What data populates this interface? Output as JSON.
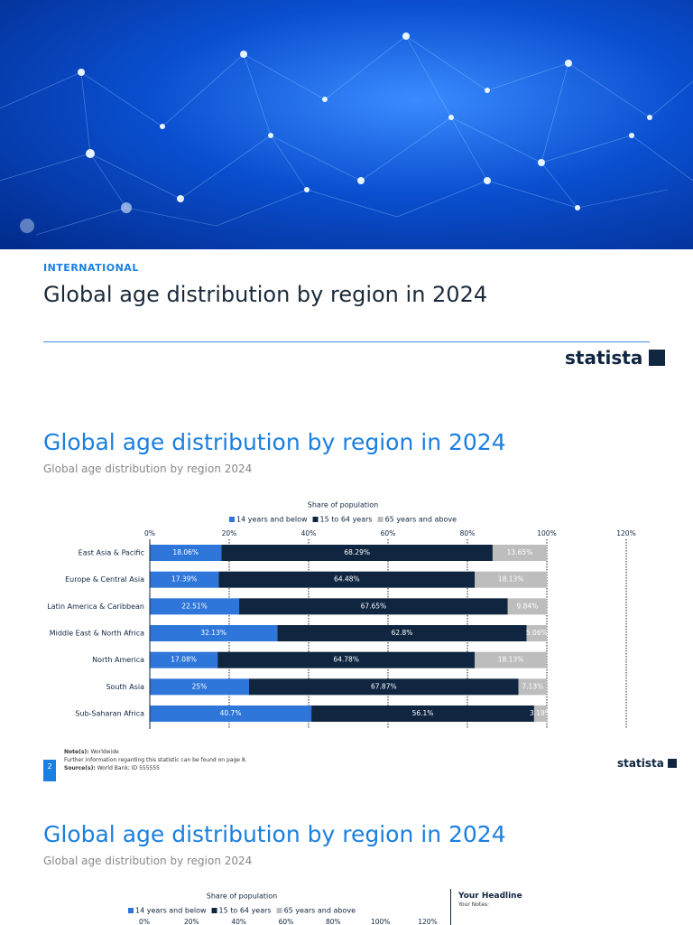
{
  "header": {
    "kicker": "INTERNATIONAL",
    "title": "Global age distribution by region in 2024",
    "logo": "statista"
  },
  "slides": [
    {
      "title": "Global age distribution by region in 2024",
      "subtitle": "Global age distribution by region 2024",
      "notes": {
        "note_label": "Note(s):",
        "note": "Worldwide",
        "further": "Further information regarding this statistic can be found on page 8.",
        "source_label": "Source(s):",
        "source": "World Bank; ID 555555"
      },
      "page_number": "2",
      "logo": "statista"
    },
    {
      "title": "Global age distribution by region in 2024",
      "subtitle": "Global age distribution by region 2024",
      "side_headline": "Your Headline",
      "side_notes": "Your Notes:"
    }
  ],
  "chart_data": [
    {
      "type": "stacked-bar-horizontal",
      "x_label": "Share of population",
      "categories": [
        "East Asia & Pacific",
        "Europe & Central Asia",
        "Latin America & Caribbean",
        "Middle East & North Africa",
        "North America",
        "South Asia",
        "Sub-Saharan Africa"
      ],
      "series": [
        {
          "name": "14 years and below",
          "color": "#2e76d9",
          "values": [
            18.06,
            17.39,
            22.51,
            32.13,
            17.08,
            25,
            40.7
          ],
          "value_labels": [
            "18.06%",
            "17.39%",
            "22.51%",
            "32.13%",
            "17.08%",
            "25%",
            "40.7%"
          ]
        },
        {
          "name": "15 to 64 years",
          "color": "#0f2540",
          "values": [
            68.29,
            64.48,
            67.65,
            62.8,
            64.78,
            67.87,
            56.1
          ],
          "value_labels": [
            "68.29%",
            "64.48%",
            "67.65%",
            "62.8%",
            "64.78%",
            "67.87%",
            "56.1%"
          ]
        },
        {
          "name": "65 years and above",
          "color": "#bdbdbd",
          "values": [
            13.65,
            18.13,
            9.84,
            5.06,
            18.13,
            7.13,
            3.19
          ],
          "value_labels": [
            "13.65%",
            "18.13%",
            "9.84%",
            "5.06%",
            "18.13%",
            "7.13%",
            "3.19%"
          ]
        }
      ],
      "xlim": [
        0,
        120
      ],
      "xticks": [
        {
          "value": 0,
          "label": "0%"
        },
        {
          "value": 20,
          "label": "20%"
        },
        {
          "value": 40,
          "label": "40%"
        },
        {
          "value": 60,
          "label": "60%"
        },
        {
          "value": 80,
          "label": "80%"
        },
        {
          "value": 100,
          "label": "100%"
        },
        {
          "value": 120,
          "label": "120%"
        }
      ],
      "grid": true
    },
    {
      "type": "stacked-bar-horizontal",
      "x_label": "Share of population",
      "series": [
        {
          "name": "14 years and below",
          "color": "#2e76d9"
        },
        {
          "name": "15 to 64 years",
          "color": "#0f2540"
        },
        {
          "name": "65 years and above",
          "color": "#bdbdbd"
        }
      ],
      "xlim": [
        0,
        120
      ],
      "xticks": [
        {
          "value": 0,
          "label": "0%"
        },
        {
          "value": 20,
          "label": "20%"
        },
        {
          "value": 40,
          "label": "40%"
        },
        {
          "value": 60,
          "label": "60%"
        },
        {
          "value": 80,
          "label": "80%"
        },
        {
          "value": 100,
          "label": "100%"
        },
        {
          "value": 120,
          "label": "120%"
        }
      ]
    }
  ]
}
